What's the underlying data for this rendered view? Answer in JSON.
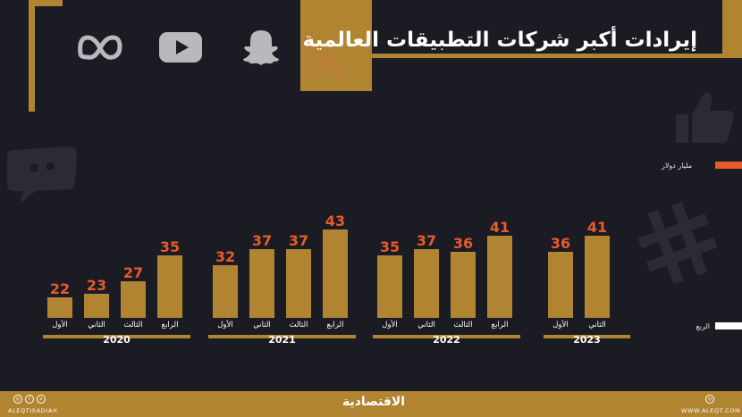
{
  "header": {
    "title": "إيرادات أكبر شركات التطبيقات العالمية",
    "logos": [
      "meta-icon",
      "youtube-icon",
      "snapchat-icon"
    ]
  },
  "legend": [
    {
      "label": "مليار دولار",
      "color": "#e95a2a"
    },
    {
      "label": "الربع",
      "color": "#ffffff"
    }
  ],
  "colors": {
    "bar": "#b08431",
    "value": "#e95a2a",
    "background": "#1b1b23"
  },
  "chart_data": {
    "type": "bar",
    "title": "إيرادات أكبر شركات التطبيقات العالمية",
    "unit": "مليار دولار",
    "groups": [
      {
        "year": "2020",
        "categories": [
          "الأول",
          "الثاني",
          "الثالث",
          "الرابع"
        ],
        "values": [
          22,
          23,
          27,
          35
        ]
      },
      {
        "year": "2021",
        "categories": [
          "الأول",
          "الثاني",
          "الثالث",
          "الرابع"
        ],
        "values": [
          32,
          37,
          37,
          43
        ]
      },
      {
        "year": "2022",
        "categories": [
          "الأول",
          "الثاني",
          "الثالث",
          "الرابع"
        ],
        "values": [
          35,
          37,
          36,
          41
        ]
      },
      {
        "year": "2023",
        "categories": [
          "الأول",
          "الثاني"
        ],
        "values": [
          36,
          41
        ]
      }
    ]
  },
  "footer": {
    "brand": "الاقتصادية",
    "handle": "ALEQTISADIAH",
    "website": "WWW.ALEQT.COM",
    "social_icons": [
      "instagram-icon",
      "facebook-icon",
      "x-icon",
      "globe-icon"
    ]
  }
}
